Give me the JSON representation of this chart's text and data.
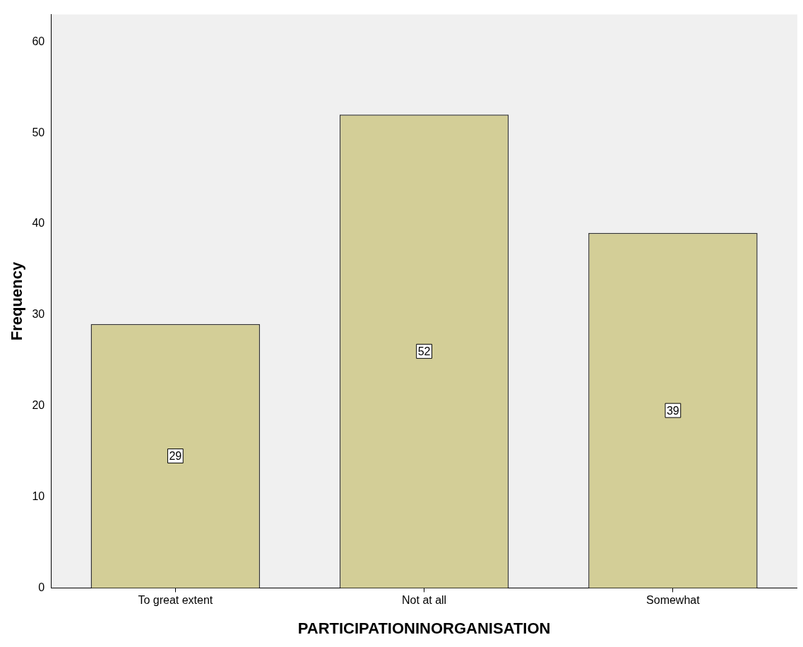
{
  "chart_data": {
    "type": "bar",
    "xlabel": "PARTICIPATIONINORGANISATION",
    "ylabel": "Frequency",
    "categories": [
      "To great extent",
      "Not at all",
      "Somewhat"
    ],
    "values": [
      29,
      52,
      39
    ],
    "color": "#d3ce97",
    "ylim": [
      0,
      63
    ],
    "yticks": [
      0,
      10,
      20,
      30,
      40,
      50,
      60
    ],
    "grid": false,
    "legend": false,
    "data_labels": true
  }
}
